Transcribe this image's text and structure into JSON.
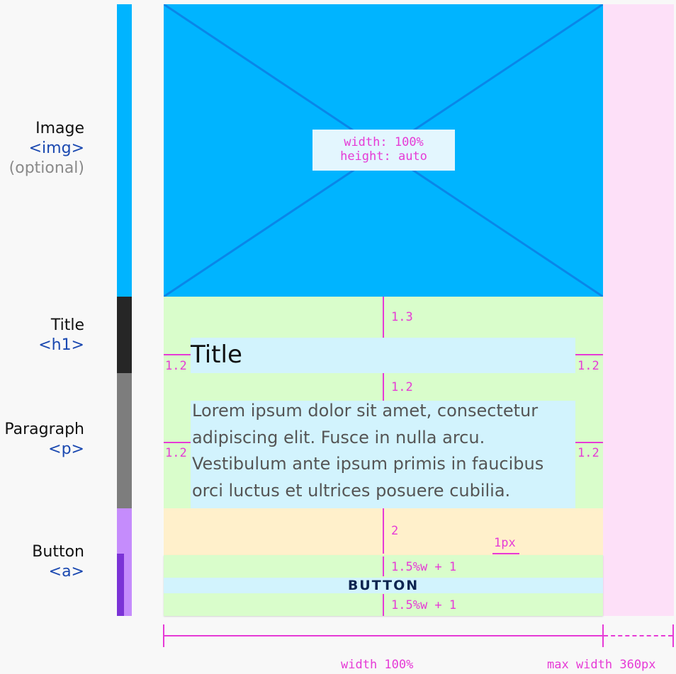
{
  "labels": {
    "image": {
      "name": "Image",
      "tag": "<img>",
      "note": "(optional)"
    },
    "title": {
      "name": "Title",
      "tag": "<h1>"
    },
    "paragraph": {
      "name": "Paragraph",
      "tag": "<p>"
    },
    "button": {
      "name": "Button",
      "tag": "<a>"
    }
  },
  "image_box": {
    "line1": "width: 100%",
    "line2": "height: auto"
  },
  "card": {
    "title": "Title",
    "paragraph_lines": [
      "Lorem ipsum dolor sit amet, consectetur",
      "adipiscing elit. Fusce in nulla arcu.",
      "Vestibulum ante ipsum primis in faucibus",
      "orci luctus et ultrices posuere cubilia."
    ],
    "button": "BUTTON"
  },
  "spacing": {
    "title_top": "1.3",
    "title_left": "1.2",
    "title_right": "1.2",
    "paragraph_top": "1.2",
    "paragraph_left": "1.2",
    "paragraph_right": "1.2",
    "button_top": "2",
    "border": "1px",
    "button_pad_top": "1.5%w + 1",
    "button_pad_bottom": "1.5%w + 1"
  },
  "dimensions": {
    "width": "width 100%",
    "max_width": "max width 360px"
  },
  "colors": {
    "image": "#00b4ff",
    "image_lines": "#0a86e8",
    "spacing_green": "#d9fdcb",
    "content_blue": "#d2f3fd",
    "button_margin": "#fff0cb",
    "max_width_area": "#fde0f8",
    "annotation": "#e63ad6",
    "title_bar": "#262626",
    "paragraph_bar": "#7d7d7d",
    "button_bar": "#c58cfc",
    "button_bar_dark": "#7b33d6",
    "button_text": "#0d2550"
  }
}
